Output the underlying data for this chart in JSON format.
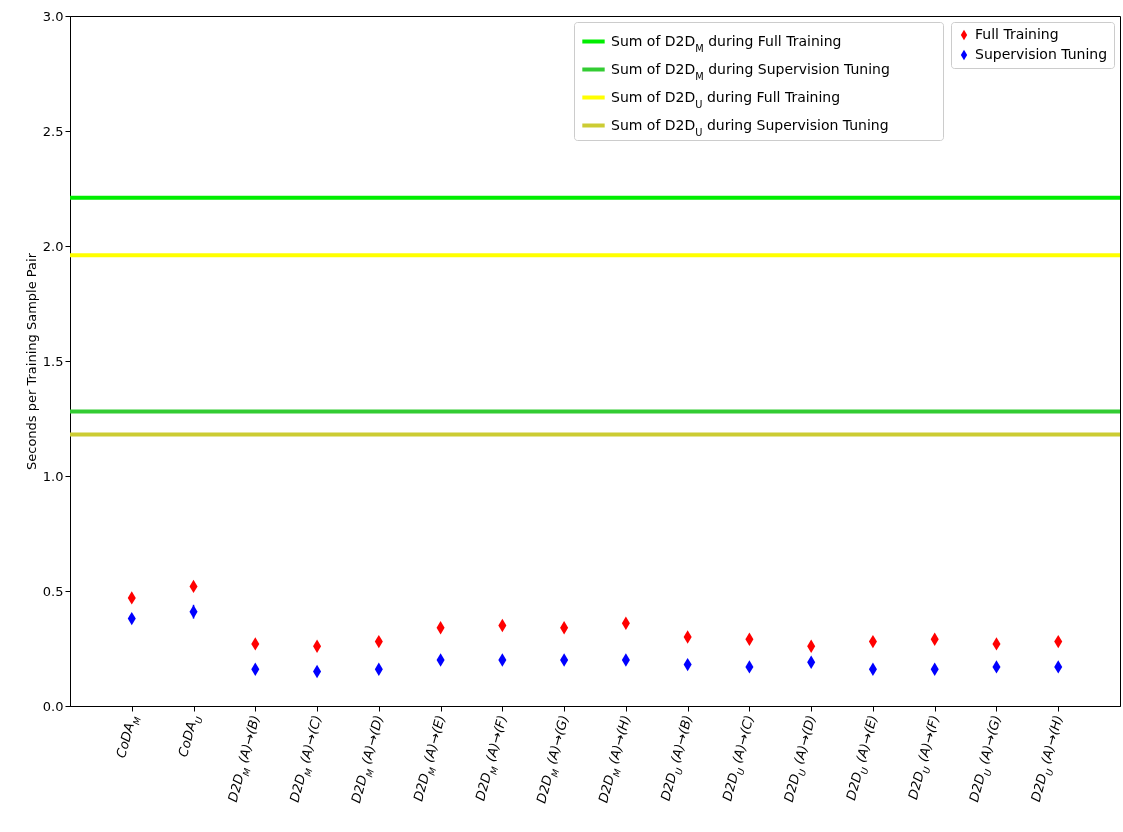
{
  "chart_data": {
    "type": "scatter",
    "ylabel": "Seconds per Training Sample Pair",
    "categories": [
      "CoDA$_{M}$",
      "CoDA$_{U}$",
      "D2D$_{M}$ (A)→(B)",
      "D2D$_{M}$ (A)→(C)",
      "D2D$_{M}$ (A)→(D)",
      "D2D$_{M}$ (A)→(E)",
      "D2D$_{M}$ (A)→(F)",
      "D2D$_{M}$ (A)→(G)",
      "D2D$_{M}$ (A)→(H)",
      "D2D$_{U}$ (A)→(B)",
      "D2D$_{U}$ (A)→(C)",
      "D2D$_{U}$ (A)→(D)",
      "D2D$_{U}$ (A)→(E)",
      "D2D$_{U}$ (A)→(F)",
      "D2D$_{U}$ (A)→(G)",
      "D2D$_{U}$ (A)→(H)"
    ],
    "series": [
      {
        "name": "Full Training",
        "color": "#ff0000",
        "values": [
          0.47,
          0.52,
          0.27,
          0.26,
          0.28,
          0.34,
          0.35,
          0.34,
          0.36,
          0.3,
          0.29,
          0.26,
          0.28,
          0.29,
          0.27,
          0.28
        ],
        "errors": [
          0.01,
          0.015,
          0.01,
          null,
          null,
          null,
          null,
          null,
          null,
          null,
          null,
          0.02,
          null,
          null,
          null,
          null
        ]
      },
      {
        "name": "Supervision Tuning",
        "color": "#0000ff",
        "values": [
          0.38,
          0.41,
          0.16,
          0.15,
          0.16,
          0.2,
          0.2,
          0.2,
          0.2,
          0.18,
          0.17,
          0.19,
          0.16,
          0.16,
          0.17,
          0.17
        ],
        "errors": [
          0.01,
          0.03,
          null,
          null,
          null,
          null,
          null,
          null,
          null,
          null,
          null,
          0.01,
          null,
          null,
          null,
          null
        ]
      }
    ],
    "ref_lines": [
      {
        "axis": "y",
        "value": 2.21,
        "label": "Sum of D2D$_{M}$ during Full Training",
        "color": "#00ee00"
      },
      {
        "axis": "y",
        "value": 1.28,
        "label": "Sum of D2D$_{M}$ during Supervision Tuning",
        "color": "#33cc33"
      },
      {
        "axis": "y",
        "value": 1.96,
        "label": "Sum of D2D$_{U}$ during Full Training",
        "color": "#ffff00"
      },
      {
        "axis": "y",
        "value": 1.18,
        "label": "Sum of D2D$_{U}$ during Supervision Tuning",
        "color": "#cccc33"
      }
    ],
    "ylim": [
      0,
      3
    ],
    "yticks": [
      {
        "value": 0,
        "label": "0.0"
      },
      0.5,
      {
        "value": 1,
        "label": "1.0"
      },
      1.5,
      {
        "value": 2,
        "label": "2.0"
      },
      2.5,
      {
        "value": 3,
        "label": "3.0"
      }
    ],
    "marker": "diamond",
    "grid": false,
    "legend": "top right"
  }
}
